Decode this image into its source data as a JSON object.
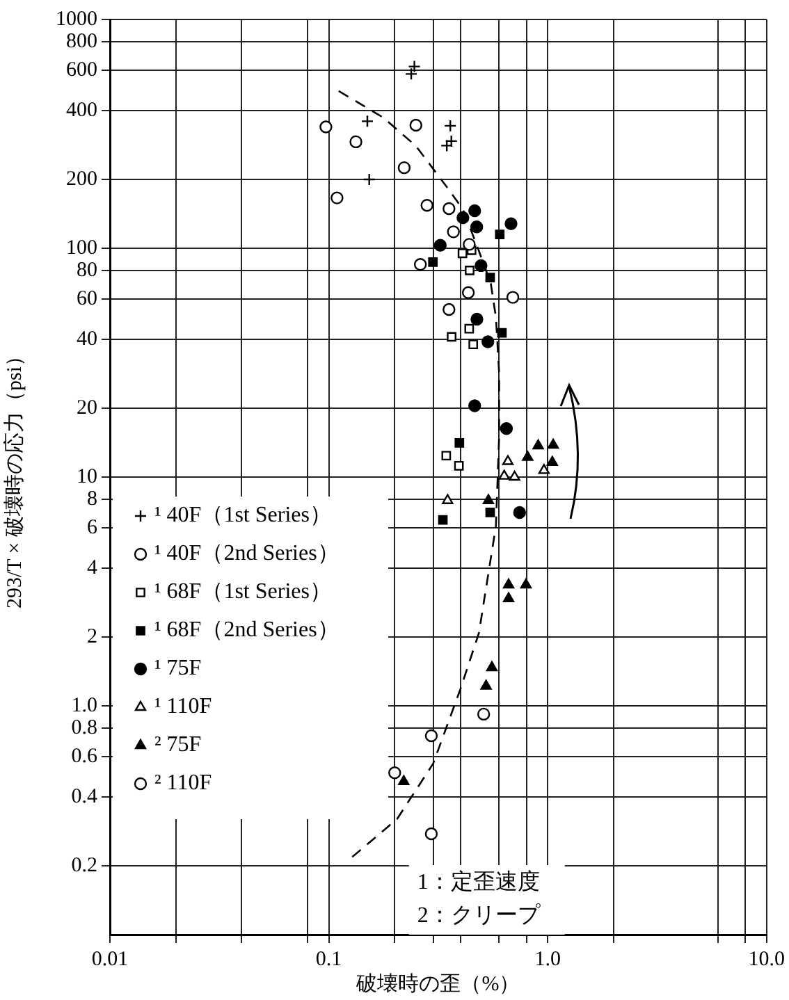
{
  "chart_data": {
    "type": "scatter",
    "xlabel": "破壊時の歪（%）",
    "ylabel": "293/T × 破壊時の応力（psi）",
    "log": "xy",
    "grid": true,
    "legend": "bottom left",
    "xlim": [
      0.01,
      10
    ],
    "ylim": [
      0.1,
      1000
    ],
    "xticks": [
      0.01,
      {
        "value": 0.02,
        "label": null
      },
      {
        "value": 0.04,
        "label": null
      },
      {
        "value": 0.08,
        "label": null
      },
      0.1,
      {
        "value": 0.2,
        "label": null
      },
      {
        "value": 0.3,
        "label": null
      },
      {
        "value": 0.4,
        "label": null
      },
      {
        "value": 0.6,
        "label": null
      },
      {
        "value": 0.8,
        "label": null
      },
      {
        "value": 1,
        "label": "1.0"
      },
      {
        "value": 2,
        "label": null
      },
      {
        "value": 6,
        "label": null
      },
      {
        "value": 8,
        "label": null
      },
      {
        "value": 10,
        "label": "10.0"
      }
    ],
    "yticks": [
      0.2,
      0.4,
      0.6,
      0.8,
      {
        "value": 1,
        "label": "1.0"
      },
      2,
      4,
      6,
      8,
      10,
      20,
      40,
      60,
      80,
      100,
      200,
      400,
      600,
      800,
      1000
    ],
    "series": [
      {
        "name": "¹ 40F（1st Series）",
        "color": "#000000",
        "marker": "cross",
        "x": [
          0.238,
          0.246,
          0.15,
          0.359,
          0.346,
          0.363,
          0.153
        ],
        "values": [
          578,
          623,
          359,
          343,
          281,
          294,
          200
        ]
      },
      {
        "name": "¹ 40F（2nd Series）",
        "color": "#ffffff",
        "marker": "circle",
        "x": [
          0.097,
          0.133,
          0.25,
          0.221,
          0.109,
          0.281,
          0.354,
          0.371,
          0.262,
          0.438,
          0.434,
          0.693,
          0.354
        ],
        "values": [
          339,
          292,
          345,
          225,
          166,
          154,
          149,
          118,
          85,
          104,
          64,
          61,
          54
        ]
      },
      {
        "name": "¹ 68F（1st Series）",
        "color": "#ffffff",
        "marker": "square",
        "x": [
          0.408,
          0.449,
          0.44,
          0.438,
          0.364,
          0.457,
          0.344,
          0.393
        ],
        "values": [
          95,
          98,
          80,
          44.5,
          41,
          38,
          12.4,
          11.2
        ]
      },
      {
        "name": "¹ 68F（2nd Series）",
        "color": "#000000",
        "marker": "square",
        "x": [
          0.604,
          0.299,
          0.546,
          0.618,
          0.395,
          0.332,
          0.546
        ],
        "values": [
          115,
          87,
          74.5,
          42.7,
          14.1,
          6.5,
          7
        ]
      },
      {
        "name": "¹ 75F",
        "color": "#000000",
        "marker": "circle",
        "x": [
          0.464,
          0.41,
          0.474,
          0.68,
          0.323,
          0.496,
          0.475,
          0.533,
          0.464,
          0.648,
          0.744
        ],
        "values": [
          146,
          136,
          124,
          128,
          103,
          84,
          49,
          39,
          20.5,
          16.3,
          7
        ]
      },
      {
        "name": "¹ 110F",
        "color": "#ffffff",
        "marker": "triangle",
        "x": [
          0.658,
          0.633,
          0.706,
          0.962,
          0.349
        ],
        "values": [
          11.7,
          10.1,
          10,
          10.7,
          7.9
        ]
      },
      {
        "name": "² 75F",
        "color": "#000000",
        "marker": "triangle",
        "x": [
          0.905,
          1.06,
          0.81,
          1.05,
          0.536,
          0.663,
          0.796,
          0.663,
          0.556,
          0.523,
          0.22
        ],
        "values": [
          13.7,
          13.8,
          12.2,
          11.6,
          7.9,
          3.38,
          3.38,
          2.94,
          1.47,
          1.22,
          0.467
        ]
      },
      {
        "name": "² 110F",
        "color": "#ffffff",
        "marker": "circle",
        "x": [
          0.51,
          0.294,
          0.2,
          0.294
        ],
        "values": [
          0.92,
          0.74,
          0.51,
          0.276
        ]
      },
      {
        "type": "line",
        "color": "#000000",
        "line_style": "dashed",
        "x": [
          0.111,
          0.177,
          0.25,
          0.345,
          0.41,
          0.48,
          0.55,
          0.58,
          0.6,
          0.6,
          0.58,
          0.485,
          0.4,
          0.3,
          0.205,
          0.124
        ],
        "values": [
          487,
          373,
          280,
          186,
          148,
          100,
          70,
          50,
          28.6,
          15,
          6.1,
          2.08,
          1.19,
          0.56,
          0.32,
          0.213
        ]
      }
    ],
    "annotations": [
      "1：定歪速度",
      "2：クリープ"
    ]
  }
}
